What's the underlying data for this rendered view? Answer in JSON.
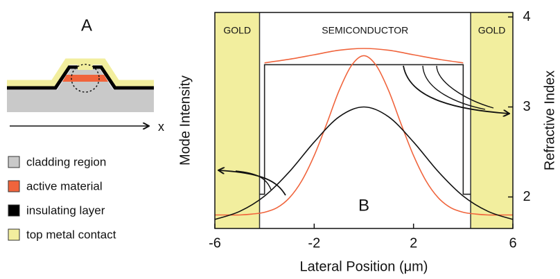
{
  "panel_a": {
    "label": "A",
    "axis_label": "x",
    "legend": [
      {
        "name": "cladding region",
        "color": "#c9c9c9"
      },
      {
        "name": "active material",
        "color": "#f0643c"
      },
      {
        "name": "insulating layer",
        "color": "#000000"
      },
      {
        "name": "top metal contact",
        "color": "#f2ee9e"
      }
    ]
  },
  "chart_data": {
    "type": "line",
    "panel_label": "B",
    "xlabel": "Lateral Position (μm)",
    "ylabel": "Mode Intensity",
    "y2label": "Refractive Index",
    "xlim": [
      -6,
      6
    ],
    "xticks": [
      -6,
      -2,
      2,
      6
    ],
    "y2lim": [
      1.65,
      4.05
    ],
    "y2ticks": [
      2,
      3,
      4
    ],
    "regions": [
      {
        "label": "GOLD",
        "x": [
          -6,
          -4.2
        ],
        "color": "#f2ee9e"
      },
      {
        "label": "SEMICONDUCTOR",
        "x": [
          -4.2,
          4.3
        ],
        "color": "#ffffff"
      },
      {
        "label": "GOLD",
        "x": [
          4.3,
          6
        ],
        "color": "#f2ee9e"
      }
    ],
    "series": [
      {
        "color": "#222222",
        "axis": "y2",
        "x": [
          -4.2,
          -4,
          -4,
          4,
          4,
          4.3
        ],
        "values": [
          2.03,
          2.03,
          3.47,
          3.47,
          2.03,
          2.03
        ]
      },
      {
        "color": "#f0643c",
        "axis": "y2",
        "curve": "smooth",
        "x": [
          -4,
          -3,
          -2,
          -1,
          0,
          1,
          2,
          3,
          4
        ],
        "values": [
          3.49,
          3.53,
          3.58,
          3.63,
          3.65,
          3.63,
          3.58,
          3.53,
          3.49
        ]
      },
      {
        "color": "#f0643c",
        "axis": "y2",
        "curve": "smooth",
        "x": [
          -6,
          -5.5,
          -5,
          -4.5,
          -4,
          -3.5,
          -3,
          -2.5,
          -2,
          -1.5,
          -1,
          -0.5,
          0,
          0.5,
          1,
          1.5,
          2,
          2.5,
          3,
          3.5,
          4,
          4.5,
          5,
          5.5,
          6
        ],
        "values": [
          1.8,
          1.8,
          1.8,
          1.81,
          1.83,
          1.88,
          1.99,
          2.18,
          2.46,
          2.81,
          3.18,
          3.46,
          3.57,
          3.46,
          3.18,
          2.81,
          2.46,
          2.18,
          1.99,
          1.88,
          1.83,
          1.81,
          1.8,
          1.8,
          1.8
        ]
      },
      {
        "color": "#111111",
        "axis": "y2",
        "curve": "smooth",
        "x": [
          -6,
          -5,
          -4,
          -3,
          -2,
          -1,
          0,
          1,
          2,
          3,
          4,
          5,
          6
        ],
        "values": [
          1.75,
          1.84,
          2.01,
          2.28,
          2.61,
          2.89,
          3.0,
          2.89,
          2.61,
          2.28,
          2.01,
          1.84,
          1.75
        ]
      }
    ]
  }
}
